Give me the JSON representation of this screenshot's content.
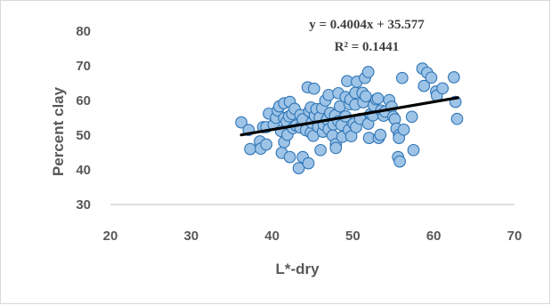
{
  "chart_data": {
    "type": "scatter",
    "xlabel": "L*-dry",
    "ylabel": "Percent clay",
    "xlim": [
      20,
      70
    ],
    "ylim": [
      30,
      80
    ],
    "x_ticks": [
      "20",
      "30",
      "40",
      "50",
      "60",
      "70"
    ],
    "y_ticks": [
      "30",
      "40",
      "50",
      "60",
      "70",
      "80"
    ],
    "grid": false,
    "legend": "none",
    "marker_fill": "#9DC3E6",
    "marker_edge": "#2E75B6",
    "trendline": {
      "slope": 0.4004,
      "intercept": 35.577,
      "x_range": [
        36.2,
        63.0
      ],
      "color": "#000000",
      "equation": "y = 0.4004x + 35.577",
      "r_squared": "R² = 0.1441"
    },
    "series": [
      {
        "points": [
          [
            36.2,
            53.7
          ],
          [
            37.1,
            51.5
          ],
          [
            37.3,
            46.0
          ],
          [
            38.5,
            48.2
          ],
          [
            38.6,
            46.1
          ],
          [
            38.9,
            52.3
          ],
          [
            39.3,
            52.3
          ],
          [
            39.3,
            47.3
          ],
          [
            39.6,
            56.2
          ],
          [
            40.2,
            53.0
          ],
          [
            40.5,
            55.0
          ],
          [
            40.7,
            57.1
          ],
          [
            40.9,
            58.3
          ],
          [
            41.1,
            51.2
          ],
          [
            41.2,
            44.9
          ],
          [
            41.5,
            59.2
          ],
          [
            41.5,
            54.9
          ],
          [
            41.5,
            48.0
          ],
          [
            41.8,
            53.9
          ],
          [
            41.9,
            50.1
          ],
          [
            42.1,
            55.4
          ],
          [
            42.2,
            59.6
          ],
          [
            42.2,
            43.7
          ],
          [
            42.5,
            56.1
          ],
          [
            42.6,
            52.0
          ],
          [
            42.8,
            57.6
          ],
          [
            43.0,
            52.8
          ],
          [
            43.3,
            40.5
          ],
          [
            43.5,
            55.8
          ],
          [
            43.5,
            52.2
          ],
          [
            43.8,
            54.6
          ],
          [
            43.8,
            43.7
          ],
          [
            44.2,
            51.4
          ],
          [
            44.4,
            63.8
          ],
          [
            44.5,
            41.9
          ],
          [
            44.6,
            56.9
          ],
          [
            44.8,
            58.0
          ],
          [
            44.8,
            50.7
          ],
          [
            44.9,
            53.6
          ],
          [
            45.1,
            49.8
          ],
          [
            45.2,
            63.4
          ],
          [
            45.3,
            55.6
          ],
          [
            45.5,
            57.5
          ],
          [
            45.7,
            52.4
          ],
          [
            45.9,
            55.1
          ],
          [
            46.0,
            45.7
          ],
          [
            46.2,
            57.8
          ],
          [
            46.3,
            51.0
          ],
          [
            46.4,
            53.0
          ],
          [
            46.6,
            60.0
          ],
          [
            46.8,
            54.5
          ],
          [
            47.0,
            61.6
          ],
          [
            47.0,
            51.7
          ],
          [
            47.2,
            56.4
          ],
          [
            47.5,
            49.9
          ],
          [
            47.6,
            53.1
          ],
          [
            47.8,
            55.7
          ],
          [
            47.9,
            47.4
          ],
          [
            47.9,
            46.3
          ],
          [
            48.2,
            62.1
          ],
          [
            48.2,
            54.0
          ],
          [
            48.4,
            58.3
          ],
          [
            48.6,
            52.9
          ],
          [
            48.7,
            49.5
          ],
          [
            49.1,
            61.0
          ],
          [
            49.1,
            55.4
          ],
          [
            49.3,
            65.6
          ],
          [
            49.5,
            51.5
          ],
          [
            49.6,
            58.9
          ],
          [
            49.7,
            60.3
          ],
          [
            49.8,
            49.7
          ],
          [
            50.1,
            53.3
          ],
          [
            50.3,
            58.8
          ],
          [
            50.3,
            62.2
          ],
          [
            50.4,
            52.3
          ],
          [
            50.5,
            65.4
          ],
          [
            50.9,
            54.7
          ],
          [
            51.2,
            62.2
          ],
          [
            51.3,
            59.5
          ],
          [
            51.5,
            66.5
          ],
          [
            51.6,
            61.2
          ],
          [
            51.9,
            68.2
          ],
          [
            51.9,
            53.3
          ],
          [
            52.0,
            49.2
          ],
          [
            52.2,
            56.1
          ],
          [
            52.5,
            55.7
          ],
          [
            52.6,
            58.6
          ],
          [
            52.9,
            60.3
          ],
          [
            53.1,
            60.6
          ],
          [
            53.2,
            49.2
          ],
          [
            53.4,
            50.1
          ],
          [
            53.5,
            57.1
          ],
          [
            53.8,
            55.6
          ],
          [
            54.0,
            56.8
          ],
          [
            54.5,
            60.1
          ],
          [
            54.8,
            58.2
          ],
          [
            55.0,
            55.3
          ],
          [
            55.2,
            54.6
          ],
          [
            55.4,
            51.9
          ],
          [
            55.6,
            43.7
          ],
          [
            55.7,
            50.0
          ],
          [
            55.7,
            49.2
          ],
          [
            55.8,
            42.4
          ],
          [
            56.1,
            66.5
          ],
          [
            56.3,
            51.6
          ],
          [
            57.3,
            55.3
          ],
          [
            57.5,
            45.7
          ],
          [
            58.6,
            69.2
          ],
          [
            58.8,
            64.2
          ],
          [
            59.2,
            68.0
          ],
          [
            59.7,
            66.6
          ],
          [
            60.3,
            62.6
          ],
          [
            60.4,
            61.4
          ],
          [
            61.1,
            63.5
          ],
          [
            62.5,
            66.7
          ],
          [
            62.7,
            59.6
          ],
          [
            62.9,
            54.7
          ]
        ]
      }
    ]
  }
}
